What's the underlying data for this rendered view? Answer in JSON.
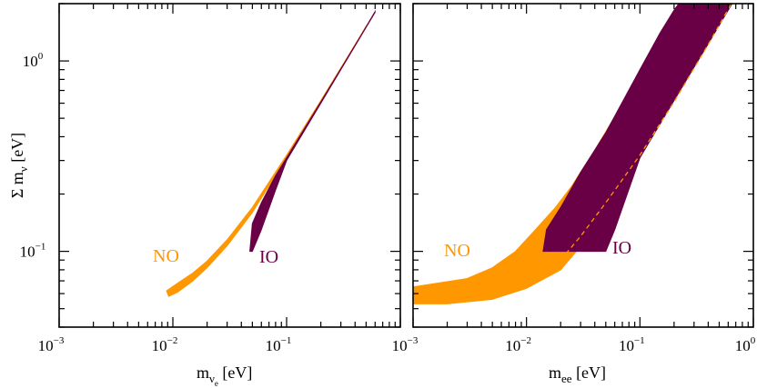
{
  "chart_data": [
    {
      "type": "area",
      "scale": "log-log",
      "xlabel": "m_{ν_e} [eV]",
      "ylabel": "Σ m_ν [eV]",
      "xlim": [
        0.001,
        1
      ],
      "ylim": [
        0.04,
        2
      ],
      "x_ticks": [
        "10^-3",
        "10^-2",
        "10^-1"
      ],
      "y_ticks": [
        "10^-1",
        "10^0"
      ],
      "series": [
        {
          "name": "NO",
          "color": "#ff9700",
          "annotation": "NO",
          "lower": [
            [
              0.0092,
              0.058
            ],
            [
              0.011,
              0.061
            ],
            [
              0.015,
              0.07
            ],
            [
              0.02,
              0.082
            ],
            [
              0.03,
              0.107
            ],
            [
              0.05,
              0.16
            ],
            [
              0.1,
              0.31
            ],
            [
              0.2,
              0.61
            ],
            [
              0.3,
              0.91
            ],
            [
              0.5,
              1.51
            ]
          ],
          "upper": [
            [
              0.0088,
              0.062
            ],
            [
              0.011,
              0.068
            ],
            [
              0.015,
              0.077
            ],
            [
              0.02,
              0.089
            ],
            [
              0.03,
              0.115
            ],
            [
              0.05,
              0.17
            ],
            [
              0.1,
              0.32
            ],
            [
              0.2,
              0.62
            ],
            [
              0.3,
              0.92
            ],
            [
              0.5,
              1.52
            ]
          ]
        },
        {
          "name": "IO",
          "color": "#690045",
          "annotation": "IO",
          "lower": [
            [
              0.05,
              0.1
            ],
            [
              0.06,
              0.13
            ],
            [
              0.08,
              0.21
            ],
            [
              0.1,
              0.3
            ],
            [
              0.2,
              0.6
            ],
            [
              0.3,
              0.9
            ],
            [
              0.45,
              1.35
            ],
            [
              0.6,
              1.8
            ]
          ],
          "upper": [
            [
              0.0475,
              0.1
            ],
            [
              0.05,
              0.14
            ],
            [
              0.06,
              0.18
            ],
            [
              0.08,
              0.25
            ],
            [
              0.1,
              0.31
            ],
            [
              0.2,
              0.61
            ],
            [
              0.3,
              0.91
            ],
            [
              0.45,
              1.36
            ],
            [
              0.6,
              1.82
            ]
          ]
        }
      ]
    },
    {
      "type": "area",
      "scale": "log-log",
      "xlabel": "m_ee [eV]",
      "xlim": [
        0.001,
        1
      ],
      "ylim": [
        0.04,
        2
      ],
      "x_ticks": [
        "10^-3",
        "10^-2",
        "10^-1",
        "10^0"
      ],
      "series": [
        {
          "name": "NO",
          "color": "#ff9700",
          "annotation": "NO",
          "lower": [
            [
              0.001,
              0.053
            ],
            [
              0.002,
              0.053
            ],
            [
              0.005,
              0.056
            ],
            [
              0.01,
              0.064
            ],
            [
              0.02,
              0.08
            ],
            [
              0.04,
              0.13
            ],
            [
              0.1,
              0.31
            ],
            [
              0.3,
              0.95
            ],
            [
              0.63,
              2.0
            ]
          ],
          "upper": [
            [
              0.001,
              0.065
            ],
            [
              0.003,
              0.072
            ],
            [
              0.005,
              0.082
            ],
            [
              0.008,
              0.1
            ],
            [
              0.012,
              0.13
            ],
            [
              0.018,
              0.17
            ],
            [
              0.025,
              0.22
            ],
            [
              0.04,
              0.34
            ],
            [
              0.1,
              0.85
            ],
            [
              0.17,
              1.5
            ],
            [
              0.24,
              2.0
            ]
          ]
        },
        {
          "name": "IO",
          "color": "#690045",
          "annotation": "IO",
          "lower": [
            [
              0.014,
              0.1
            ],
            [
              0.05,
              0.1
            ],
            [
              0.06,
              0.13
            ],
            [
              0.1,
              0.31
            ],
            [
              0.2,
              0.62
            ],
            [
              0.4,
              1.23
            ],
            [
              0.65,
              2.0
            ]
          ],
          "upper": [
            [
              0.014,
              0.1
            ],
            [
              0.015,
              0.13
            ],
            [
              0.02,
              0.17
            ],
            [
              0.03,
              0.26
            ],
            [
              0.05,
              0.42
            ],
            [
              0.1,
              0.9
            ],
            [
              0.15,
              1.4
            ],
            [
              0.2,
              1.85
            ],
            [
              0.22,
              2.0
            ]
          ]
        },
        {
          "name": "",
          "style": "dashed",
          "color": "#ff9700",
          "points": [
            [
              0.02,
              0.09
            ],
            [
              0.03,
              0.12
            ],
            [
              0.05,
              0.18
            ],
            [
              0.1,
              0.32
            ],
            [
              0.2,
              0.61
            ],
            [
              0.4,
              1.22
            ],
            [
              0.64,
              2.0
            ]
          ]
        }
      ]
    }
  ]
}
